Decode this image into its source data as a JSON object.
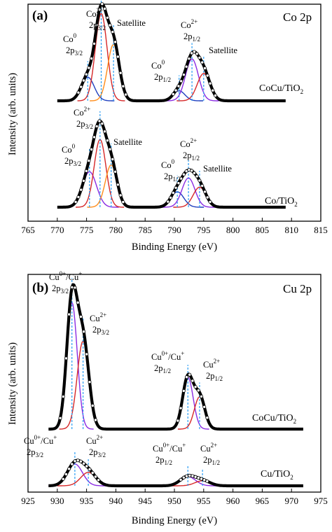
{
  "chart_data": [
    {
      "type": "line",
      "panel_label": "(a)",
      "element_label": "Co 2p",
      "xlabel": "Binding Energy (eV)",
      "ylabel": "Intensity (arb. units)",
      "xlim": [
        765,
        815
      ],
      "x_ticks": [
        765,
        770,
        775,
        780,
        785,
        790,
        795,
        800,
        805,
        810,
        815
      ],
      "colors": {
        "raw": "#000000",
        "fit": "#000000",
        "gauss1": "#1f3fbf",
        "gauss2": "#8a2be2",
        "gauss3": "#d62728",
        "gauss4": "#ff8c1a",
        "guide": "#2a9df4"
      },
      "x_range": [
        770,
        809
      ],
      "spectra": [
        {
          "name": "CoCu/TiO2",
          "label_main": "CoCu/TiO",
          "label_sub": "2",
          "baseline_frac": 0.822,
          "peaks": [
            {
              "center": 775.2,
              "height": 0.26,
              "sigma": 1.1,
              "color": "#1f3fbf"
            },
            {
              "center": 777.5,
              "height": 0.96,
              "sigma": 1.0,
              "color": "#d62728"
            },
            {
              "center": 779.6,
              "height": 0.62,
              "sigma": 1.0,
              "color": "#ff8c1a"
            },
            {
              "center": 790.8,
              "height": 0.11,
              "sigma": 1.0,
              "color": "#1f3fbf"
            },
            {
              "center": 793.0,
              "height": 0.46,
              "sigma": 1.1,
              "color": "#8a2be2"
            },
            {
              "center": 795.0,
              "height": 0.3,
              "sigma": 1.1,
              "color": "#d62728"
            }
          ],
          "guide_lines": [
            775.2,
            777.5,
            779.6,
            790.8,
            793.0,
            795.0
          ],
          "annotations": [
            {
              "id": "co2-2p32",
              "sup_base": "Co",
              "sup": "2+",
              "base": "2p",
              "sub": "3/2"
            },
            {
              "id": "satellite",
              "text": "Satellite"
            },
            {
              "id": "co0-2p32",
              "sup_base": "Co",
              "sup": "0",
              "base": "2p",
              "sub": "3/2"
            },
            {
              "id": "co0-2p12",
              "sup_base": "Co",
              "sup": "0",
              "base": "2p",
              "sub": "1/2"
            },
            {
              "id": "co2-2p12",
              "sup_base": "Co",
              "sup": "2+",
              "base": "2p",
              "sub": "1/2"
            },
            {
              "id": "satellite-2",
              "text": "Satellite"
            }
          ]
        },
        {
          "name": "Co/TiO2",
          "label_main": "Co/TiO",
          "label_sub": "2",
          "baseline_frac": 0.822,
          "peaks": [
            {
              "center": 775.5,
              "height": 0.46,
              "sigma": 1.2,
              "color": "#8a2be2"
            },
            {
              "center": 777.3,
              "height": 0.88,
              "sigma": 1.0,
              "color": "#d62728"
            },
            {
              "center": 779.2,
              "height": 0.55,
              "sigma": 1.0,
              "color": "#ff8c1a"
            },
            {
              "center": 790.5,
              "height": 0.2,
              "sigma": 1.1,
              "color": "#1f3fbf"
            },
            {
              "center": 792.4,
              "height": 0.38,
              "sigma": 1.1,
              "color": "#8a2be2"
            },
            {
              "center": 794.3,
              "height": 0.26,
              "sigma": 1.1,
              "color": "#d62728"
            }
          ],
          "guide_lines": [
            775.5,
            777.3,
            779.2,
            790.5,
            792.4,
            794.3
          ],
          "annotations": [
            {
              "id": "co2-2p32",
              "sup_base": "Co",
              "sup": "2+",
              "base": "2p",
              "sub": "3/2"
            },
            {
              "id": "co0-2p32",
              "sup_base": "Co",
              "sup": "0",
              "base": "2p",
              "sub": "3/2"
            },
            {
              "id": "satellite",
              "text": "Satellite"
            },
            {
              "id": "co0-2p12",
              "sup_base": "Co",
              "sup": "0",
              "base": "2p",
              "sub": "1/2"
            },
            {
              "id": "co2-2p12",
              "sup_base": "Co",
              "sup": "2+",
              "base": "2p",
              "sub": "1/2"
            },
            {
              "id": "satellite-2",
              "text": "Satellite"
            }
          ]
        }
      ]
    },
    {
      "type": "line",
      "panel_label": "(b)",
      "element_label": "Cu 2p",
      "xlabel": "Binding Energy (eV)",
      "ylabel": "Intensity (arb. units)",
      "xlim": [
        925,
        975
      ],
      "x_ticks": [
        925,
        930,
        935,
        940,
        945,
        950,
        955,
        960,
        965,
        970,
        975
      ],
      "colors": {
        "raw": "#000000",
        "guide": "#2a9df4"
      },
      "x_range": [
        928.5,
        972
      ],
      "spectra": [
        {
          "name": "CoCu/TiO2",
          "label_main": "CoCu/TiO",
          "label_sub": "2",
          "peaks": [
            {
              "center": 932.5,
              "height": 0.98,
              "sigma": 0.9,
              "color": "#8a2be2"
            },
            {
              "center": 934.4,
              "height": 0.68,
              "sigma": 1.0,
              "color": "#d62728"
            },
            {
              "center": 952.3,
              "height": 0.4,
              "sigma": 0.9,
              "color": "#8a2be2"
            },
            {
              "center": 954.3,
              "height": 0.25,
              "sigma": 0.9,
              "color": "#d62728"
            }
          ],
          "guide_lines": [
            932.5,
            934.4,
            952.3,
            954.3
          ],
          "annotations": [
            {
              "id": "cu-0-2p32",
              "sup_base": "Cu",
              "sup": "0+",
              "mid": "/Cu",
              "sup2": "+",
              "base": "2p",
              "sub": "3/2"
            },
            {
              "id": "cu2-2p32",
              "sup_base": "Cu",
              "sup": "2+",
              "base": "2p",
              "sub": "3/2"
            },
            {
              "id": "cu-0-2p12",
              "sup_base": "Cu",
              "sup": "0+",
              "mid": "/Cu",
              "sup2": "+",
              "base": "2p",
              "sub": "1/2"
            },
            {
              "id": "cu2-2p12",
              "sup_base": "Cu",
              "sup": "2+",
              "base": "2p",
              "sub": "1/2"
            }
          ]
        },
        {
          "name": "Cu/TiO2",
          "label_main": "Cu/TiO",
          "label_sub": "2",
          "peaks": [
            {
              "center": 933.0,
              "height": 0.26,
              "sigma": 1.3,
              "color": "#8a2be2"
            },
            {
              "center": 935.3,
              "height": 0.16,
              "sigma": 1.3,
              "color": "#d62728"
            },
            {
              "center": 952.3,
              "height": 0.11,
              "sigma": 1.3,
              "color": "#8a2be2"
            },
            {
              "center": 954.8,
              "height": 0.06,
              "sigma": 1.3,
              "color": "#d62728"
            }
          ],
          "guide_lines": [
            933.0,
            935.3,
            952.3,
            954.8
          ],
          "annotations": [
            {
              "id": "cu-0-2p32",
              "sup_base": "Cu",
              "sup": "0+",
              "mid": "/Cu",
              "sup2": "+",
              "base": "2p",
              "sub": "3/2"
            },
            {
              "id": "cu2-2p32",
              "sup_base": "Cu",
              "sup": "2+",
              "base": "2p",
              "sub": "3/2"
            },
            {
              "id": "cu-0-2p12",
              "sup_base": "Cu",
              "sup": "0+",
              "mid": "/Cu",
              "sup2": "+",
              "base": "2p",
              "sub": "1/2"
            },
            {
              "id": "cu2-2p12",
              "sup_base": "Cu",
              "sup": "2+",
              "base": "2p",
              "sub": "1/2"
            }
          ]
        }
      ]
    }
  ]
}
